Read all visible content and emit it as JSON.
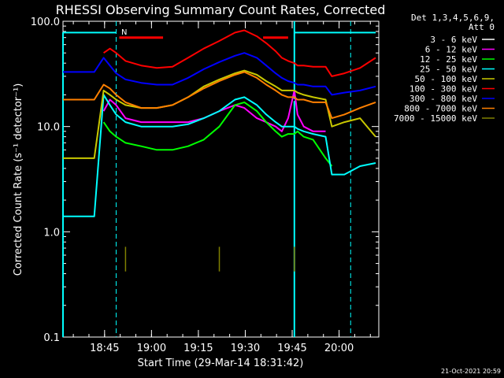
{
  "chart_data": {
    "type": "line",
    "title": "RHESSI Observing Summary Count Rates, Corrected",
    "xlabel": "Start Time (29-Mar-14 18:31:42)",
    "ylabel": "Corrected Count Rate (s⁻¹ detector⁻¹)",
    "yscale": "log",
    "ylim": [
      0.1,
      100
    ],
    "xlim_minutes_after_start": [
      0,
      101
    ],
    "x_ticks": [
      "18:45",
      "19:00",
      "19:15",
      "19:30",
      "19:45",
      "20:00"
    ],
    "y_ticks": [
      "0.1",
      "1.0",
      "10.0",
      "100.0"
    ],
    "x_tick_minutes_after_start": [
      13.3,
      28.3,
      43.3,
      58.3,
      73.3,
      88.3
    ],
    "legend_header": [
      "Det 1,3,4,5,6,9,",
      "Att 0"
    ],
    "legend_position": "right",
    "timestamp": "21-Oct-2021 20:59",
    "flag_label": "N",
    "x_minutes_after_start": [
      0,
      10,
      13,
      15,
      17,
      20,
      25,
      30,
      35,
      40,
      45,
      50,
      55,
      58,
      62,
      65,
      68,
      70,
      72,
      74,
      75,
      77,
      80,
      84,
      86,
      90,
      95,
      100
    ],
    "series": [
      {
        "name": "3 - 6 keV",
        "color": "#000000",
        "values": [
          null,
          null,
          22,
          25,
          22,
          19,
          17,
          15,
          14,
          14,
          15,
          16,
          17,
          18,
          16,
          14,
          13,
          12,
          16,
          18,
          17,
          15,
          14,
          15,
          2,
          null,
          null,
          null
        ]
      },
      {
        "name": "6 - 12 keV",
        "color": "#ff00ff",
        "values": [
          null,
          null,
          14,
          18,
          16,
          12,
          11,
          11,
          11,
          11,
          12,
          14,
          16,
          15,
          12,
          11,
          10,
          9,
          12,
          22,
          13,
          10,
          9,
          9,
          null,
          null,
          null,
          null
        ]
      },
      {
        "name": "12 - 25 keV",
        "color": "#00ff00",
        "values": [
          null,
          null,
          11,
          9,
          8,
          7,
          6.5,
          6,
          6,
          6.5,
          7.5,
          10,
          16,
          17,
          14,
          11,
          9,
          8,
          8.5,
          8.5,
          9,
          8,
          7.5,
          5,
          4.2,
          null,
          null,
          null
        ]
      },
      {
        "name": "25 - 50 keV",
        "color": "#00ffff",
        "values": [
          1.4,
          1.4,
          20,
          16,
          13,
          11,
          10,
          10,
          10,
          10.5,
          12,
          14,
          18,
          19,
          16,
          13,
          11,
          10,
          10,
          10,
          9.5,
          9,
          8.5,
          8,
          3.5,
          3.5,
          4.2,
          4.5
        ]
      },
      {
        "name": "50 - 100 keV",
        "color": "#c8c800",
        "values": [
          5,
          5,
          22,
          20,
          18,
          16,
          15,
          15,
          16,
          19,
          24,
          28,
          32,
          34,
          31,
          27,
          24,
          22,
          22,
          22,
          21,
          20,
          19,
          18,
          10,
          11,
          12,
          8
        ]
      },
      {
        "name": "100 - 300 keV",
        "color": "#ff0000",
        "values": [
          null,
          null,
          50,
          55,
          50,
          42,
          38,
          36,
          37,
          45,
          55,
          65,
          78,
          82,
          72,
          62,
          52,
          45,
          42,
          40,
          38,
          38,
          37,
          37,
          30,
          32,
          36,
          45
        ]
      },
      {
        "name": "300 - 800 keV",
        "color": "#0000ff",
        "values": [
          33,
          33,
          45,
          38,
          32,
          28,
          26,
          25,
          25,
          29,
          35,
          41,
          47,
          50,
          45,
          38,
          32,
          29,
          27,
          26,
          25,
          25,
          24,
          24,
          20,
          21,
          22,
          24
        ]
      },
      {
        "name": "800 - 7000 keV",
        "color": "#ff8000",
        "values": [
          18,
          18,
          25,
          23,
          20,
          17,
          15,
          15,
          16,
          19,
          23,
          27,
          31,
          33,
          29,
          25,
          22,
          20,
          19,
          19,
          18,
          18,
          17,
          17,
          12,
          13,
          15,
          17
        ]
      },
      {
        "name": "7000 - 15000 keV",
        "color": "#808000",
        "values": [
          null,
          null,
          null,
          null,
          null,
          0.6,
          null,
          null,
          null,
          null,
          null,
          0.6,
          null,
          null,
          null,
          null,
          null,
          null,
          null,
          0.6,
          null,
          null,
          null,
          null,
          null,
          null,
          null,
          null
        ]
      }
    ],
    "reference_lines": {
      "vertical_dashed_minutes": [
        17,
        92
      ],
      "vertical_solid_minutes": [
        74
      ],
      "top_cyan_segments_minutes": [
        [
          0,
          17
        ],
        [
          74,
          100
        ]
      ],
      "top_red_segments_minutes": [
        [
          18,
          32
        ],
        [
          64,
          72
        ]
      ],
      "top_red_segments_y": 70,
      "top_cyan_segments_y": 78
    }
  }
}
